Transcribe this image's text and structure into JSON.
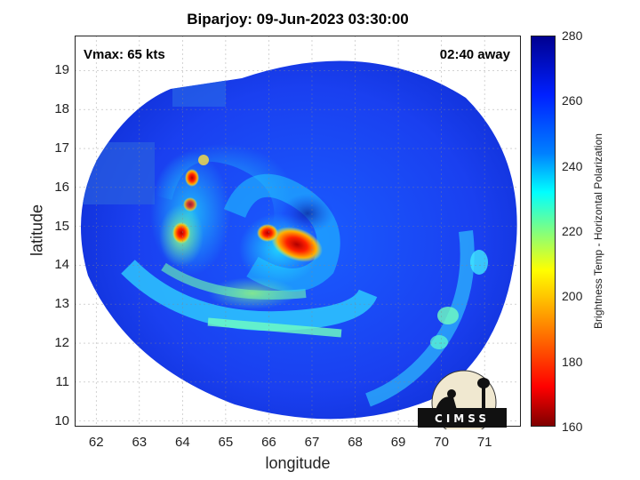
{
  "title": "Biparjoy: 09-Jun-2023 03:30:00",
  "vmax_label": "Vmax: 65 kts",
  "time_away": "02:40 away",
  "x_axis": {
    "label": "longitude",
    "range": [
      61.5,
      71.8
    ],
    "ticks": [
      "62",
      "63",
      "64",
      "65",
      "66",
      "67",
      "68",
      "69",
      "70",
      "71"
    ]
  },
  "y_axis": {
    "label": "latitude",
    "range": [
      9.9,
      19.9
    ],
    "ticks": [
      "10",
      "11",
      "12",
      "13",
      "14",
      "15",
      "16",
      "17",
      "18",
      "19"
    ]
  },
  "colorbar": {
    "label": "Brightness Temp - Horizontal Polarization",
    "range": [
      160,
      280
    ],
    "ticks": [
      "280",
      "260",
      "240",
      "220",
      "200",
      "180",
      "160"
    ]
  },
  "logo": {
    "text": "CIMSS"
  },
  "grid": true,
  "storm_center": {
    "lon": 66.5,
    "lat": 14.6
  }
}
